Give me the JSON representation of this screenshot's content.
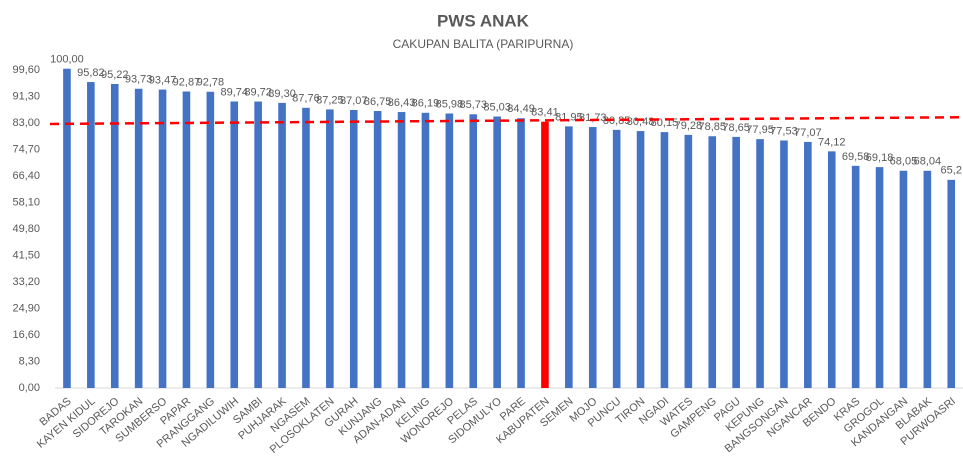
{
  "chart_data": {
    "type": "bar",
    "title": "PWS ANAK",
    "subtitle": "CAKUPAN BALITA (PARIPURNA)",
    "categories": [
      "BADAS",
      "KAYEN KIDUL",
      "SIDOREJO",
      "TAROKAN",
      "SUMBERSO",
      "PAPAR",
      "PRANGGANG",
      "NGADILUWIH",
      "SAMBI",
      "PUHJARAK",
      "NGASEM",
      "PLOSOKLATEN",
      "GURAH",
      "KUNJANG",
      "ADAN-ADAN",
      "KELING",
      "WONOREJO",
      "PELAS",
      "SIDOMULYO",
      "PARE",
      "KABUPATEN",
      "SEMEN",
      "MOJO",
      "PUNCU",
      "TIRON",
      "NGADI",
      "WATES",
      "GAMPENG",
      "PAGU",
      "KEPUNG",
      "BANGSONGAN",
      "NGANCAR",
      "BENDO",
      "KRAS",
      "GROGOL",
      "KANDANGAN",
      "BLABAK",
      "PURWOASRI"
    ],
    "values": [
      100.0,
      95.82,
      95.22,
      93.73,
      93.47,
      92.87,
      92.78,
      89.74,
      89.72,
      89.3,
      87.76,
      87.25,
      87.07,
      86.75,
      86.43,
      86.19,
      85.98,
      85.73,
      85.03,
      84.49,
      83.41,
      81.95,
      81.73,
      80.85,
      80.48,
      80.15,
      79.28,
      78.85,
      78.65,
      77.95,
      77.53,
      77.07,
      74.12,
      69.58,
      69.18,
      68.05,
      68.04,
      65.2
    ],
    "value_labels": [
      "100,00",
      "95,82",
      "95,22",
      "93,73",
      "93,47",
      "92,87",
      "92,78",
      "89,74",
      "89,72",
      "89,30",
      "87,76",
      "87,25",
      "87,07",
      "86,75",
      "86,43",
      "86,19",
      "85,98",
      "85,73",
      "85,03",
      "84,49",
      "83,41",
      "81,95",
      "81,73",
      "80,85",
      "80,48",
      "80,15",
      "79,28",
      "78,85",
      "78,65",
      "77,95",
      "77,53",
      "77,07",
      "74,12",
      "69,58",
      "69,18",
      "68,05",
      "68,04",
      "65,2"
    ],
    "color": "#4472c4",
    "highlight": {
      "category": "KABUPATEN",
      "color": "#ff0000"
    },
    "target_line": {
      "start": 82.7,
      "end": 84.8,
      "color": "#ff0000"
    },
    "ylim": [
      0,
      99.6
    ],
    "yticks": [
      {
        "value": 0,
        "label": "0,00"
      },
      {
        "value": 8.3,
        "label": "8,30"
      },
      {
        "value": 16.6,
        "label": "16,60"
      },
      {
        "value": 24.9,
        "label": "24,90"
      },
      {
        "value": 33.2,
        "label": "33,20"
      },
      {
        "value": 41.5,
        "label": "41,50"
      },
      {
        "value": 49.8,
        "label": "49,80"
      },
      {
        "value": 58.1,
        "label": "58,10"
      },
      {
        "value": 66.4,
        "label": "66,40"
      },
      {
        "value": 74.7,
        "label": "74,70"
      },
      {
        "value": 83,
        "label": "83,00"
      },
      {
        "value": 91.3,
        "label": "91,30"
      },
      {
        "value": 99.6,
        "label": "99,60"
      }
    ],
    "grid": false
  }
}
